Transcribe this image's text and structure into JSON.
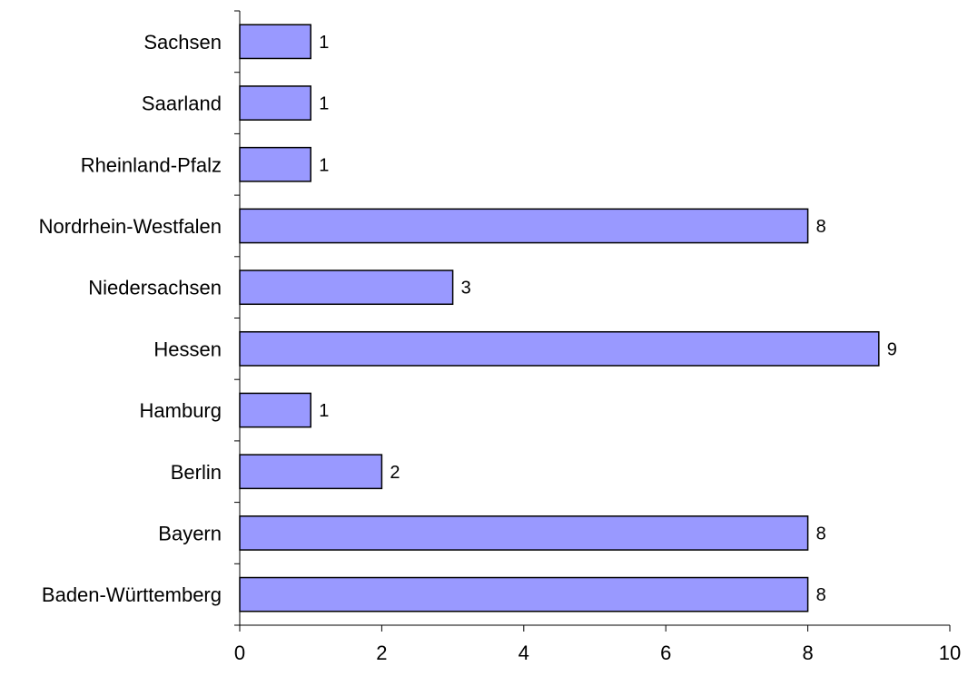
{
  "chart_data": {
    "type": "bar",
    "orientation": "horizontal",
    "categories": [
      "Baden-Württemberg",
      "Bayern",
      "Berlin",
      "Hamburg",
      "Hessen",
      "Niedersachsen",
      "Nordrhein-Westfalen",
      "Rheinland-Pfalz",
      "Saarland",
      "Sachsen"
    ],
    "values": [
      8,
      8,
      2,
      1,
      9,
      3,
      8,
      1,
      1,
      1
    ],
    "data_labels": [
      "8",
      "8",
      "2",
      "1",
      "9",
      "3",
      "8",
      "1",
      "1",
      "1"
    ],
    "title": "",
    "xlabel": "",
    "ylabel": "",
    "xlim": [
      0,
      10
    ],
    "xticks": [
      0,
      2,
      4,
      6,
      8,
      10
    ],
    "xtick_labels": [
      "0",
      "2",
      "4",
      "6",
      "8",
      "10"
    ],
    "grid": false,
    "legend": "none",
    "colors": {
      "bar_fill": "#9999ff",
      "bar_stroke": "#000000",
      "axis": "#000000"
    }
  }
}
